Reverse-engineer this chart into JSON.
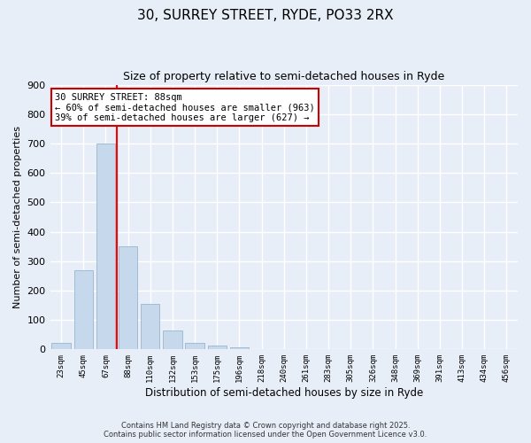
{
  "title": "30, SURREY STREET, RYDE, PO33 2RX",
  "subtitle": "Size of property relative to semi-detached houses in Ryde",
  "xlabel": "Distribution of semi-detached houses by size in Ryde",
  "ylabel": "Number of semi-detached properties",
  "bar_labels": [
    "23sqm",
    "45sqm",
    "67sqm",
    "88sqm",
    "110sqm",
    "132sqm",
    "153sqm",
    "175sqm",
    "196sqm",
    "218sqm",
    "240sqm",
    "261sqm",
    "283sqm",
    "305sqm",
    "326sqm",
    "348sqm",
    "369sqm",
    "391sqm",
    "413sqm",
    "434sqm",
    "456sqm"
  ],
  "bar_values": [
    22,
    270,
    700,
    350,
    155,
    65,
    22,
    12,
    8,
    0,
    0,
    0,
    0,
    0,
    0,
    0,
    0,
    0,
    0,
    0,
    0
  ],
  "bar_color": "#c6d9ec",
  "bar_edge_color": "#9ab5cc",
  "vline_color": "red",
  "annotation_title": "30 SURREY STREET: 88sqm",
  "annotation_line1": "← 60% of semi-detached houses are smaller (963)",
  "annotation_line2": "39% of semi-detached houses are larger (627) →",
  "annotation_box_color": "#ffffff",
  "annotation_box_edge": "#cc0000",
  "ylim": [
    0,
    900
  ],
  "yticks": [
    0,
    100,
    200,
    300,
    400,
    500,
    600,
    700,
    800,
    900
  ],
  "background_color": "#e8eef8",
  "grid_color": "#ffffff",
  "footer_line1": "Contains HM Land Registry data © Crown copyright and database right 2025.",
  "footer_line2": "Contains public sector information licensed under the Open Government Licence v3.0."
}
